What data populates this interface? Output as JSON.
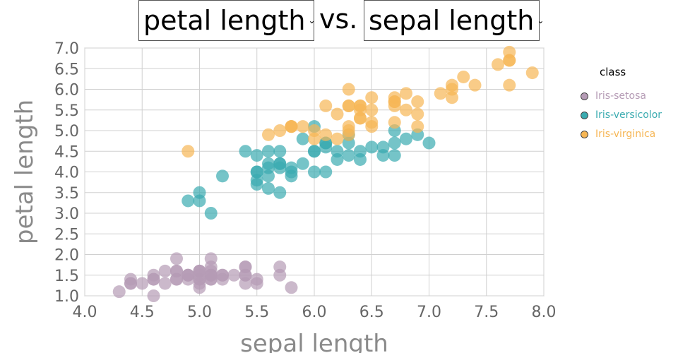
{
  "controls": {
    "y_select": "petal length",
    "x_select": "sepal length",
    "vs": "vs."
  },
  "legend": {
    "title": "class",
    "items": [
      {
        "label": "Iris-setosa",
        "color": "#b59bb5"
      },
      {
        "label": "Iris-versicolor",
        "color": "#3aabb0"
      },
      {
        "label": "Iris-virginica",
        "color": "#f6b655"
      }
    ]
  },
  "chart_data": {
    "type": "scatter",
    "xlabel": "sepal length",
    "ylabel": "petal length",
    "xlim": [
      4.0,
      8.0
    ],
    "ylim": [
      1.0,
      7.0
    ],
    "xticks": [
      "4.0",
      "4.5",
      "5.0",
      "5.5",
      "6.0",
      "6.5",
      "7.0",
      "7.5",
      "8.0"
    ],
    "yticks": [
      "1.0",
      "1.5",
      "2.0",
      "2.5",
      "3.0",
      "3.5",
      "4.0",
      "4.5",
      "5.0",
      "5.5",
      "6.0",
      "6.5",
      "7.0"
    ],
    "grid": true,
    "legend_position": "right",
    "series": [
      {
        "name": "Iris-setosa",
        "color": "#b59bb5",
        "points": [
          [
            5.1,
            1.4
          ],
          [
            4.9,
            1.4
          ],
          [
            4.7,
            1.3
          ],
          [
            4.6,
            1.5
          ],
          [
            5.0,
            1.4
          ],
          [
            5.4,
            1.7
          ],
          [
            4.6,
            1.4
          ],
          [
            5.0,
            1.5
          ],
          [
            4.4,
            1.4
          ],
          [
            4.9,
            1.5
          ],
          [
            5.4,
            1.5
          ],
          [
            4.8,
            1.6
          ],
          [
            4.8,
            1.4
          ],
          [
            4.3,
            1.1
          ],
          [
            5.8,
            1.2
          ],
          [
            5.7,
            1.5
          ],
          [
            5.4,
            1.3
          ],
          [
            5.1,
            1.4
          ],
          [
            5.7,
            1.7
          ],
          [
            5.1,
            1.5
          ],
          [
            5.4,
            1.7
          ],
          [
            5.1,
            1.5
          ],
          [
            4.6,
            1.0
          ],
          [
            5.1,
            1.7
          ],
          [
            4.8,
            1.9
          ],
          [
            5.0,
            1.6
          ],
          [
            5.0,
            1.6
          ],
          [
            5.2,
            1.5
          ],
          [
            5.2,
            1.4
          ],
          [
            4.7,
            1.6
          ],
          [
            4.8,
            1.6
          ],
          [
            5.4,
            1.5
          ],
          [
            5.2,
            1.5
          ],
          [
            5.5,
            1.4
          ],
          [
            4.9,
            1.5
          ],
          [
            5.0,
            1.2
          ],
          [
            5.5,
            1.3
          ],
          [
            4.9,
            1.5
          ],
          [
            4.4,
            1.3
          ],
          [
            5.1,
            1.5
          ],
          [
            5.0,
            1.3
          ],
          [
            4.5,
            1.3
          ],
          [
            4.4,
            1.3
          ],
          [
            5.0,
            1.6
          ],
          [
            5.1,
            1.9
          ],
          [
            4.8,
            1.4
          ],
          [
            5.1,
            1.6
          ],
          [
            4.6,
            1.4
          ],
          [
            5.3,
            1.5
          ],
          [
            5.0,
            1.4
          ]
        ]
      },
      {
        "name": "Iris-versicolor",
        "color": "#3aabb0",
        "points": [
          [
            7.0,
            4.7
          ],
          [
            6.4,
            4.5
          ],
          [
            6.9,
            4.9
          ],
          [
            5.5,
            4.0
          ],
          [
            6.5,
            4.6
          ],
          [
            5.7,
            4.5
          ],
          [
            6.3,
            4.7
          ],
          [
            4.9,
            3.3
          ],
          [
            6.6,
            4.6
          ],
          [
            5.2,
            3.9
          ],
          [
            5.0,
            3.5
          ],
          [
            5.9,
            4.2
          ],
          [
            6.0,
            4.0
          ],
          [
            6.1,
            4.7
          ],
          [
            5.6,
            3.6
          ],
          [
            6.7,
            4.4
          ],
          [
            5.6,
            4.5
          ],
          [
            5.8,
            4.1
          ],
          [
            6.2,
            4.5
          ],
          [
            5.6,
            3.9
          ],
          [
            5.9,
            4.8
          ],
          [
            6.1,
            4.0
          ],
          [
            6.3,
            4.9
          ],
          [
            6.1,
            4.7
          ],
          [
            6.4,
            4.3
          ],
          [
            6.6,
            4.4
          ],
          [
            6.8,
            4.8
          ],
          [
            6.7,
            5.0
          ],
          [
            6.0,
            4.5
          ],
          [
            5.7,
            3.5
          ],
          [
            5.5,
            3.8
          ],
          [
            5.5,
            3.7
          ],
          [
            5.8,
            3.9
          ],
          [
            6.0,
            5.1
          ],
          [
            5.4,
            4.5
          ],
          [
            6.0,
            4.5
          ],
          [
            6.7,
            4.7
          ],
          [
            6.3,
            4.4
          ],
          [
            5.6,
            4.1
          ],
          [
            5.5,
            4.0
          ],
          [
            5.5,
            4.4
          ],
          [
            6.1,
            4.6
          ],
          [
            5.8,
            4.0
          ],
          [
            5.0,
            3.3
          ],
          [
            5.6,
            4.2
          ],
          [
            5.7,
            4.2
          ],
          [
            5.7,
            4.2
          ],
          [
            6.2,
            4.3
          ],
          [
            5.1,
            3.0
          ],
          [
            5.7,
            4.1
          ]
        ]
      },
      {
        "name": "Iris-virginica",
        "color": "#f6b655",
        "points": [
          [
            6.3,
            6.0
          ],
          [
            5.8,
            5.1
          ],
          [
            7.1,
            5.9
          ],
          [
            6.3,
            5.6
          ],
          [
            6.5,
            5.8
          ],
          [
            7.6,
            6.6
          ],
          [
            4.9,
            4.5
          ],
          [
            7.3,
            6.3
          ],
          [
            6.7,
            5.8
          ],
          [
            7.2,
            6.1
          ],
          [
            6.5,
            5.1
          ],
          [
            6.4,
            5.3
          ],
          [
            6.8,
            5.5
          ],
          [
            5.7,
            5.0
          ],
          [
            5.8,
            5.1
          ],
          [
            6.4,
            5.3
          ],
          [
            6.5,
            5.5
          ],
          [
            7.7,
            6.7
          ],
          [
            7.7,
            6.9
          ],
          [
            6.0,
            5.0
          ],
          [
            6.9,
            5.7
          ],
          [
            5.6,
            4.9
          ],
          [
            7.7,
            6.7
          ],
          [
            6.3,
            4.9
          ],
          [
            6.7,
            5.7
          ],
          [
            7.2,
            6.0
          ],
          [
            6.2,
            4.8
          ],
          [
            6.1,
            4.9
          ],
          [
            6.4,
            5.6
          ],
          [
            7.2,
            5.8
          ],
          [
            7.4,
            6.1
          ],
          [
            7.9,
            6.4
          ],
          [
            6.4,
            5.6
          ],
          [
            6.3,
            5.1
          ],
          [
            6.1,
            5.6
          ],
          [
            7.7,
            6.1
          ],
          [
            6.3,
            5.6
          ],
          [
            6.4,
            5.5
          ],
          [
            6.0,
            4.8
          ],
          [
            6.9,
            5.4
          ],
          [
            6.7,
            5.6
          ],
          [
            6.9,
            5.1
          ],
          [
            5.8,
            5.1
          ],
          [
            6.8,
            5.9
          ],
          [
            6.7,
            5.7
          ],
          [
            6.7,
            5.2
          ],
          [
            6.3,
            5.0
          ],
          [
            6.5,
            5.2
          ],
          [
            6.2,
            5.4
          ],
          [
            5.9,
            5.1
          ]
        ]
      }
    ]
  }
}
